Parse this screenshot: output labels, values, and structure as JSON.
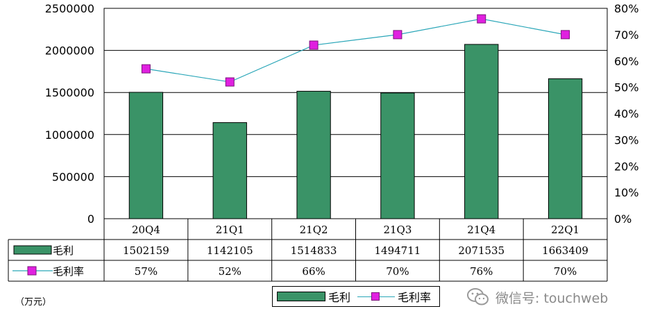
{
  "chart_data": {
    "type": "bar",
    "categories": [
      "20Q4",
      "21Q1",
      "21Q2",
      "21Q3",
      "21Q4",
      "22Q1"
    ],
    "series": [
      {
        "name": "毛利",
        "type": "bar",
        "axis": "left",
        "color": "#3a9367",
        "values": [
          1502159,
          1142105,
          1514833,
          1494711,
          2071535,
          1663409
        ],
        "table_labels": [
          "1502159",
          "1142105",
          "1514833",
          "1494711",
          "2071535",
          "1663409"
        ]
      },
      {
        "name": "毛利率",
        "type": "line",
        "axis": "right",
        "color": "#2aa6b8",
        "marker_color": "#e020e0",
        "values": [
          57,
          52,
          66,
          70,
          76,
          70
        ],
        "table_labels": [
          "57%",
          "52%",
          "66%",
          "70%",
          "76%",
          "70%"
        ]
      }
    ],
    "y_left": {
      "ylim": [
        0,
        2500000
      ],
      "ticks": [
        "0",
        "500000",
        "1000000",
        "1500000",
        "2000000",
        "2500000"
      ]
    },
    "y_right": {
      "ylim": [
        0,
        80
      ],
      "ticks": [
        "0%",
        "10%",
        "20%",
        "30%",
        "40%",
        "50%",
        "60%",
        "70%",
        "80%"
      ]
    },
    "grid": true,
    "legend": "bottom",
    "unit_label": "（万元）"
  },
  "watermark": {
    "text": "微信号: touchweb",
    "icon": "wechat-icon"
  }
}
